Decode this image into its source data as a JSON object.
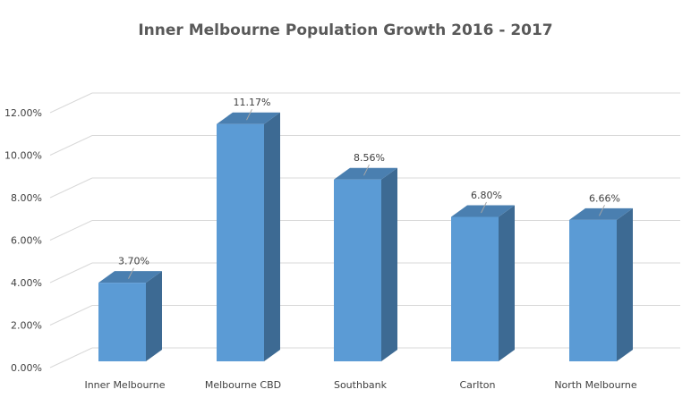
{
  "chart_data": {
    "type": "bar",
    "title": "Inner Melbourne Population Growth 2016 - 2017",
    "categories": [
      "Inner Melbourne",
      "Melbourne CBD",
      "Southbank",
      "Carlton",
      "North Melbourne"
    ],
    "values": [
      3.7,
      11.17,
      8.56,
      6.8,
      6.66
    ],
    "data_labels": [
      "3.70%",
      "11.17%",
      "8.56%",
      "6.80%",
      "6.66%"
    ],
    "ylim": [
      0,
      12
    ],
    "yticks": [
      0,
      2,
      4,
      6,
      8,
      10,
      12
    ],
    "ytick_labels": [
      "0.00%",
      "2.00%",
      "4.00%",
      "6.00%",
      "8.00%",
      "10.00%",
      "12.00%"
    ],
    "xlabel": "",
    "ylabel": "",
    "grid": true,
    "legend": "none",
    "style": "3d-column"
  },
  "colors": {
    "bar_front": "#5b9bd5",
    "bar_top": "#4a7fb0",
    "bar_side": "#3d6a93",
    "grid": "#d9d9d9",
    "title": "#595959"
  }
}
